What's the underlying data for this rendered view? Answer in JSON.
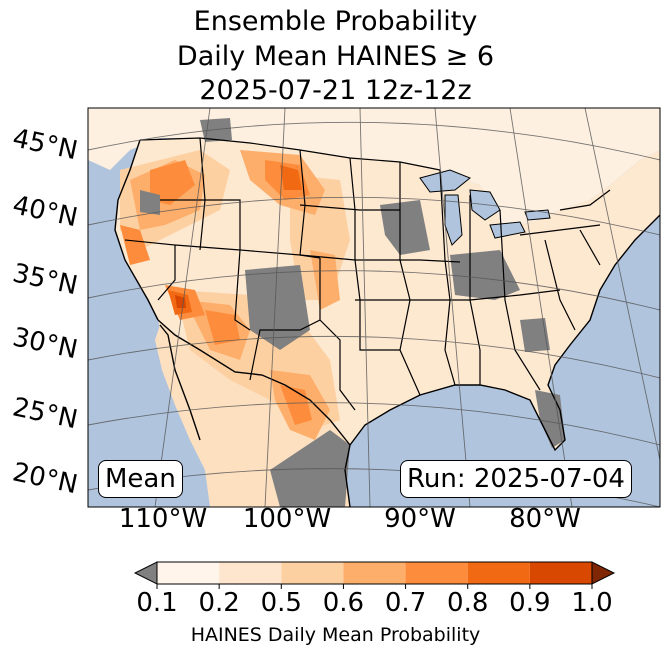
{
  "title": {
    "line1": "Ensemble Probability",
    "line2": "Daily Mean HAINES ≥ 6",
    "line3": "2025-07-21 12z-12z"
  },
  "map": {
    "region": "CONUS and northern Mexico",
    "mode_badge": "Mean",
    "run_badge": "Run: 2025-07-04",
    "lat_labels": [
      "45°N",
      "40°N",
      "35°N",
      "30°N",
      "25°N",
      "20°N"
    ],
    "lon_labels": [
      "110°W",
      "100°W",
      "90°W",
      "80°W"
    ],
    "colors": {
      "ocean": "#b0c4de",
      "land_low": "#fdf6ee",
      "missing": "#808080",
      "borders": "#000000",
      "gridlines": "#555555"
    }
  },
  "colorbar": {
    "title": "HAINES Daily Mean Probability",
    "ticks": [
      "0.1",
      "0.2",
      "0.5",
      "0.6",
      "0.7",
      "0.8",
      "0.9",
      "1.0"
    ],
    "under_color": "#808080",
    "over_color": "#7f2704",
    "bins": [
      {
        "lo": 0.1,
        "hi": 0.2,
        "color": "#fff5eb"
      },
      {
        "lo": 0.2,
        "hi": 0.5,
        "color": "#fee6ce"
      },
      {
        "lo": 0.5,
        "hi": 0.6,
        "color": "#fdd0a2"
      },
      {
        "lo": 0.6,
        "hi": 0.7,
        "color": "#fdae6b"
      },
      {
        "lo": 0.7,
        "hi": 0.8,
        "color": "#fd8d3c"
      },
      {
        "lo": 0.8,
        "hi": 0.9,
        "color": "#f16913"
      },
      {
        "lo": 0.9,
        "hi": 1.0,
        "color": "#d94801"
      }
    ]
  }
}
